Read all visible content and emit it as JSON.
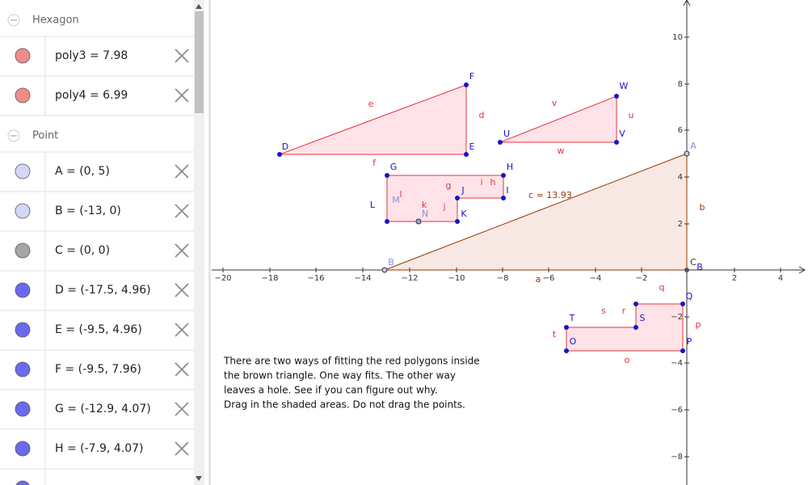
{
  "algebra_view": {
    "groups": [
      {
        "name": "Hexagon",
        "items": [
          "poly3 = 7.98",
          "poly4 = 6.99"
        ]
      },
      {
        "name": "Point",
        "items": [
          "A = (0, 5)",
          "B = (-13, 0)",
          "C = (0, 0)",
          "D = (-17.5, 4.96)",
          "E = (-9.5, 4.96)",
          "F = (-9.5, 7.96)",
          "G = (-12.9, 4.07)",
          "H = (-7.9, 4.07)"
        ]
      }
    ]
  },
  "graphics_view": {
    "x_tick_labels": [
      "−20",
      "−18",
      "−16",
      "−14",
      "−12",
      "−10",
      "−8",
      "−6",
      "−4",
      "−2",
      "2",
      "4"
    ],
    "y_tick_labels": [
      "10",
      "8",
      "6",
      "4",
      "2",
      "−2",
      "−4",
      "−6",
      "−8"
    ],
    "point_labels": [
      "A",
      "B",
      "C",
      "B",
      "D",
      "E",
      "F",
      "G",
      "H",
      "I",
      "J",
      "K",
      "N",
      "M",
      "L",
      "U",
      "V",
      "W",
      "O",
      "P",
      "Q",
      "S",
      "T"
    ],
    "segment_labels": [
      "e",
      "d",
      "f",
      "v",
      "u",
      "w",
      "g",
      "h",
      "i",
      "l",
      "k",
      "j",
      "q",
      "r",
      "s",
      "t",
      "o",
      "p",
      "c = 13.93",
      "b",
      "a"
    ],
    "note": [
      "There are two ways of fitting the red polygons inside",
      "the brown triangle.  One way fits. The other way",
      "leaves a hole.  See if you can figure out why.",
      "Drag in the shaded areas.  Do not drag the points."
    ]
  }
}
